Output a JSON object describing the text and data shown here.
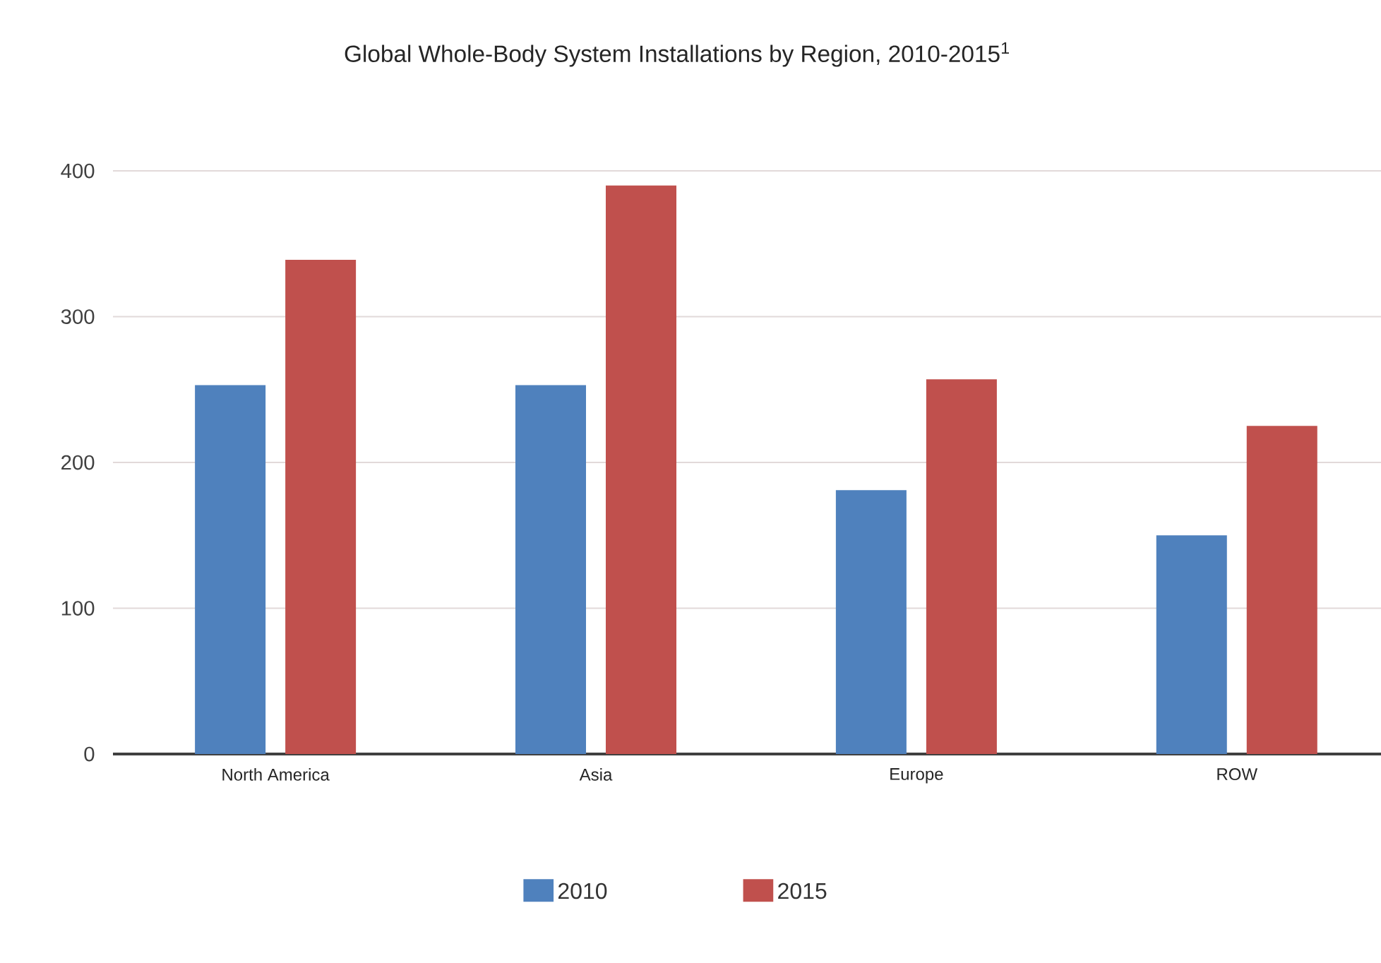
{
  "chart_data": {
    "type": "bar",
    "title": "Global Whole-Body System Installations by Region, 2010-2015$^{1}$",
    "categories": [
      "North America",
      "Asia",
      "Europe",
      "ROW"
    ],
    "series": [
      {
        "name": "2010",
        "color": "#4f81bd",
        "values": [
          253,
          253,
          181,
          150
        ]
      },
      {
        "name": "2015",
        "color": "#c0504d",
        "values": [
          339,
          390,
          257,
          225
        ]
      }
    ],
    "ylim": [
      0,
      400
    ],
    "yticks": [
      0,
      100,
      200,
      300,
      400
    ],
    "grid": "y",
    "legend": "bottom"
  }
}
